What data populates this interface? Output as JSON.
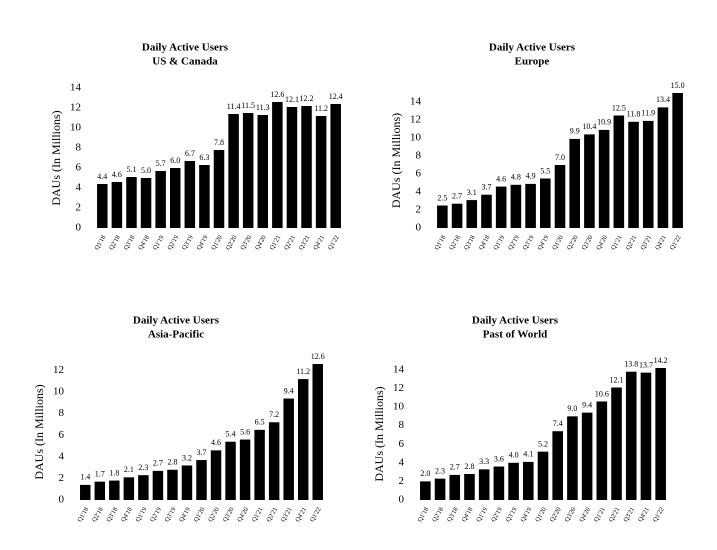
{
  "chart_data": [
    {
      "type": "bar",
      "title": "Daily Active Users",
      "subtitle": "US & Canada",
      "y_label": "DAUs (In Millions)",
      "color": "#000000",
      "categories": [
        "Q1'18",
        "Q2'18",
        "Q3'18",
        "Q4'18",
        "Q1'19",
        "Q2'19",
        "Q3'19",
        "Q4'19",
        "Q1'20",
        "Q2'20",
        "Q3'20",
        "Q4'20",
        "Q1'21",
        "Q2'21",
        "Q3'21",
        "Q4'21",
        "Q1'22"
      ],
      "values": [
        4.4,
        4.6,
        5.1,
        5.0,
        5.7,
        6.0,
        6.7,
        6.3,
        7.8,
        11.4,
        11.5,
        11.3,
        12.6,
        12.1,
        12.2,
        11.2,
        12.4
      ],
      "value_labels": [
        "4.4",
        "4.6",
        "5.1",
        "5.0",
        "5.7",
        "6.0",
        "6.7",
        "6.3",
        "7.8",
        "11.4",
        "11.5",
        "11.3",
        "12.6",
        "12.1",
        "12.2",
        "11.2",
        "12.4"
      ],
      "ylim": [
        0,
        14
      ],
      "yticks": [
        0,
        2,
        4,
        6,
        8,
        10,
        12,
        14
      ]
    },
    {
      "type": "bar",
      "title": "Daily Active Users",
      "subtitle": "Europe",
      "y_label": "DAUs (In Millions)",
      "color": "#000000",
      "categories": [
        "Q1'18",
        "Q2'18",
        "Q3'18",
        "Q4'18",
        "Q1'19",
        "Q2'19",
        "Q3'19",
        "Q4'19",
        "Q1'20",
        "Q2'20",
        "Q3'20",
        "Q4'20",
        "Q1'21",
        "Q2'21",
        "Q3'21",
        "Q4'21",
        "Q1'22"
      ],
      "values": [
        2.5,
        2.7,
        3.1,
        3.7,
        4.6,
        4.8,
        4.9,
        5.5,
        7.0,
        9.9,
        10.4,
        10.9,
        12.5,
        11.8,
        11.9,
        13.4,
        15.0
      ],
      "value_labels": [
        "2.5",
        "2.7",
        "3.1",
        "3.7",
        "4.6",
        "4.8",
        "4.9",
        "5.5",
        "7.0",
        "9.9",
        "10.4",
        "10.9",
        "12.5",
        "11.8",
        "11.9",
        "13.4",
        "15.0"
      ],
      "ylim": [
        0,
        15
      ],
      "yticks": [
        0,
        2,
        4,
        6,
        8,
        10,
        12,
        14
      ]
    },
    {
      "type": "bar",
      "title": "Daily Active Users",
      "subtitle": "Asia-Pacific",
      "y_label": "DAUs (In Millions)",
      "color": "#000000",
      "categories": [
        "Q1'18",
        "Q2'18",
        "Q3'18",
        "Q4'18",
        "Q1'19",
        "Q2'19",
        "Q3'19",
        "Q4'19",
        "Q1'20",
        "Q2'20",
        "Q3'20",
        "Q4'20",
        "Q1'21",
        "Q2'21",
        "Q3'21",
        "Q4'21",
        "Q1'22"
      ],
      "values": [
        1.4,
        1.7,
        1.8,
        2.1,
        2.3,
        2.7,
        2.8,
        3.2,
        3.7,
        4.6,
        5.4,
        5.6,
        6.5,
        7.2,
        9.4,
        11.2,
        12.6
      ],
      "value_labels": [
        "1.4",
        "1.7",
        "1.8",
        "2.1",
        "2.3",
        "2.7",
        "2.8",
        "3.2",
        "3.7",
        "4.6",
        "5.4",
        "5.6",
        "6.5",
        "7.2",
        "9.4",
        "11.2",
        "12.6"
      ],
      "ylim": [
        0,
        12.6
      ],
      "yticks": [
        0,
        2,
        4,
        6,
        8,
        10,
        12
      ]
    },
    {
      "type": "bar",
      "title": "Daily Active Users",
      "subtitle": "Past of World",
      "y_label": "DAUs (In Millions)",
      "color": "#000000",
      "categories": [
        "Q1'18",
        "Q2'18",
        "Q3'18",
        "Q4'18",
        "Q1'19",
        "Q2'19",
        "Q3'19",
        "Q4'19",
        "Q1'20",
        "Q2'20",
        "Q3'20",
        "Q4'20",
        "Q1'21",
        "Q2'21",
        "Q3'21",
        "Q4'21",
        "Q1'22"
      ],
      "values": [
        2.0,
        2.3,
        2.7,
        2.8,
        3.3,
        3.6,
        4.0,
        4.1,
        5.2,
        7.4,
        9.0,
        9.4,
        10.6,
        12.1,
        13.8,
        13.7,
        14.2
      ],
      "value_labels": [
        "2.0",
        "2.3",
        "2.7",
        "2.8",
        "3.3",
        "3.6",
        "4.0",
        "4.1",
        "5.2",
        "7.4",
        "9.0",
        "9.4",
        "10.6",
        "12.1",
        "13.8",
        "13.7",
        "14.2"
      ],
      "ylim": [
        0,
        14.2
      ],
      "yticks": [
        0,
        2,
        4,
        6,
        8,
        10,
        12,
        14
      ]
    }
  ]
}
